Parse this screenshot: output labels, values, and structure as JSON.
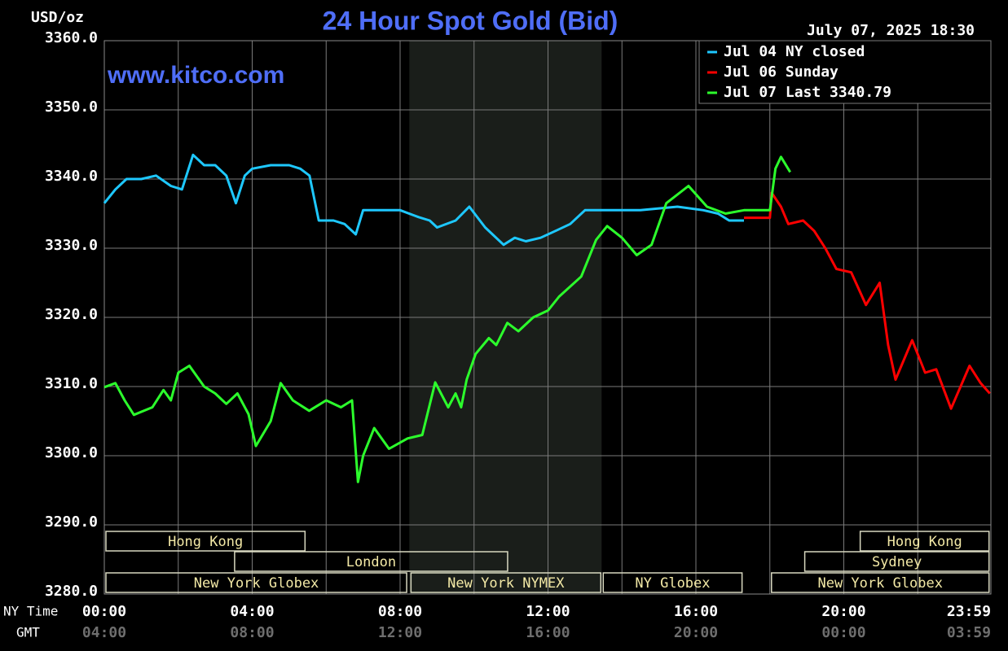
{
  "chart_data": {
    "type": "line",
    "title": "24 Hour Spot Gold (Bid)",
    "y_label": "USD/oz",
    "timestamp": "July 07, 2025 18:30",
    "watermark": "www.kitco.com",
    "x_label": "NY Time",
    "x2_label": "GMT",
    "xlim": [
      0,
      24
    ],
    "ylim": [
      3280,
      3360
    ],
    "yticks": [
      {
        "value": 3280,
        "label": "3280.0"
      },
      {
        "value": 3290,
        "label": "3290.0"
      },
      {
        "value": 3300,
        "label": "3300.0"
      },
      {
        "value": 3310,
        "label": "3310.0"
      },
      {
        "value": 3320,
        "label": "3320.0"
      },
      {
        "value": 3330,
        "label": "3330.0"
      },
      {
        "value": 3340,
        "label": "3340.0"
      },
      {
        "value": 3350,
        "label": "3350.0"
      },
      {
        "value": 3360,
        "label": "3360.0"
      }
    ],
    "xticks": [
      {
        "value": 0,
        "label": "00:00"
      },
      {
        "value": 4,
        "label": "04:00"
      },
      {
        "value": 8,
        "label": "08:00"
      },
      {
        "value": 12,
        "label": "12:00"
      },
      {
        "value": 16,
        "label": "16:00"
      },
      {
        "value": 20,
        "label": "20:00"
      },
      {
        "value": 23.98,
        "label": "23:59"
      }
    ],
    "x2tick_labels": [
      "04:00",
      "08:00",
      "12:00",
      "16:00",
      "20:00",
      "00:00",
      "03:59"
    ],
    "x_minor_ticks": [
      2,
      6,
      10,
      14,
      18,
      22
    ],
    "grid": true,
    "shaded_range": [
      8.25,
      13.45
    ],
    "legend": "upper right",
    "series": [
      {
        "name": "Jul 04 NY closed",
        "color": "#1ec8ff",
        "x": [
          0,
          0.3,
          0.6,
          1.0,
          1.4,
          1.8,
          2.1,
          2.4,
          2.7,
          3.0,
          3.3,
          3.56,
          3.8,
          4.0,
          4.5,
          5.0,
          5.3,
          5.55,
          5.8,
          6.2,
          6.5,
          6.8,
          7.0,
          7.5,
          8.0,
          8.5,
          8.8,
          9.0,
          9.5,
          9.87,
          10.3,
          10.5,
          10.8,
          11.1,
          11.4,
          11.8,
          12.2,
          12.6,
          13.0,
          13.5,
          14.5,
          15.5,
          16.2,
          16.6,
          16.9,
          17.3
        ],
        "values": [
          3336.5,
          3338.5,
          3340,
          3340,
          3340.5,
          3339,
          3338.5,
          3343.5,
          3342,
          3342,
          3340.5,
          3336.5,
          3340.5,
          3341.5,
          3342,
          3342,
          3341.5,
          3340.5,
          3334,
          3334,
          3333.5,
          3332,
          3335.5,
          3335.5,
          3335.5,
          3334.5,
          3334,
          3333,
          3334,
          3336,
          3333,
          3332,
          3330.5,
          3331.5,
          3331,
          3331.5,
          3332.5,
          3333.5,
          3335.5,
          3335.5,
          3335.5,
          3336,
          3335.5,
          3335,
          3334,
          3334
        ]
      },
      {
        "name": "Jul 06 Sunday",
        "color": "#ff0000",
        "x": [
          17.3,
          18.0,
          18.05,
          18.3,
          18.5,
          18.9,
          19.2,
          19.5,
          19.8,
          20.2,
          20.6,
          20.97,
          21.2,
          21.4,
          21.85,
          22.2,
          22.5,
          22.9,
          23.4,
          23.7,
          23.95
        ],
        "values": [
          3334.4,
          3334.4,
          3338,
          3336,
          3333.5,
          3334,
          3332.5,
          3330,
          3327,
          3326.5,
          3321.8,
          3325,
          3316,
          3311,
          3316.7,
          3312,
          3312.5,
          3306.8,
          3313,
          3310.5,
          3309
        ]
      },
      {
        "name": "Jul 07 Last 3340.79",
        "color": "#2cff2c",
        "x": [
          0,
          0.3,
          0.55,
          0.8,
          1.3,
          1.6,
          1.8,
          2.0,
          2.3,
          2.7,
          3.0,
          3.3,
          3.6,
          3.9,
          4.1,
          4.5,
          4.77,
          5.1,
          5.54,
          6.0,
          6.4,
          6.7,
          6.86,
          7.0,
          7.3,
          7.7,
          8.2,
          8.6,
          8.95,
          9.3,
          9.5,
          9.65,
          9.8,
          10.04,
          10.4,
          10.6,
          10.9,
          11.2,
          11.6,
          12.0,
          12.3,
          12.9,
          13.3,
          13.6,
          14.0,
          14.4,
          14.8,
          15.2,
          15.8,
          16.3,
          16.8,
          17.3,
          18.0,
          18.15,
          18.3,
          18.55
        ],
        "values": [
          3309.9,
          3310.5,
          3308,
          3305.9,
          3307,
          3309.5,
          3308,
          3312,
          3313,
          3310,
          3309,
          3307.5,
          3309,
          3306,
          3301.4,
          3305,
          3310.5,
          3308,
          3306.5,
          3308,
          3307,
          3308,
          3296.2,
          3300,
          3304,
          3301,
          3302.5,
          3303,
          3310.6,
          3307,
          3309,
          3307,
          3311,
          3314.7,
          3317,
          3316,
          3319.2,
          3318,
          3320,
          3321,
          3323,
          3325.9,
          3331.2,
          3333.2,
          3331.5,
          3329,
          3330.5,
          3336.5,
          3339,
          3336,
          3335,
          3335.5,
          3335.5,
          3341.5,
          3343.2,
          3341
        ]
      }
    ],
    "sessions": [
      [
        {
          "label": "Hong Kong",
          "start": 0,
          "end": 5.45
        },
        {
          "label": "Hong Kong",
          "start": 20.4,
          "end": 23.95
        }
      ],
      [
        {
          "label": "London",
          "start": 3.48,
          "end": 10.93
        },
        {
          "label": "Sydney",
          "start": 18.9,
          "end": 23.95
        }
      ],
      [
        {
          "label": "New York Globex",
          "start": 0,
          "end": 8.2
        },
        {
          "label": "New York NYMEX",
          "start": 8.25,
          "end": 13.45
        },
        {
          "label": "NY Globex",
          "start": 13.45,
          "end": 17.27
        },
        {
          "label": "New York Globex",
          "start": 18.0,
          "end": 23.95
        }
      ]
    ]
  }
}
